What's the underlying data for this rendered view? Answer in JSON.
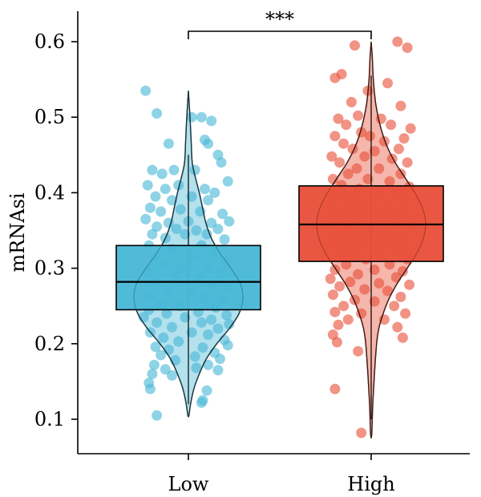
{
  "chart_data": {
    "type": "violin-box-jitter",
    "title": "",
    "xlabel": "",
    "ylabel": "mRNAsi",
    "ylim": [
      0.07,
      0.63
    ],
    "yticks": [
      0.1,
      0.2,
      0.3,
      0.4,
      0.5,
      0.6
    ],
    "categories": [
      "Low",
      "High"
    ],
    "significance": {
      "label": "***",
      "between": [
        "Low",
        "High"
      ]
    },
    "series": [
      {
        "category": "Low",
        "color": "#49B8D6",
        "box": {
          "q1": 0.245,
          "median": 0.282,
          "q3": 0.33
        },
        "whisker": [
          0.12,
          0.45
        ],
        "violin_range": [
          0.105,
          0.535
        ],
        "violin_density": [
          [
            0.105,
            0.01
          ],
          [
            0.12,
            0.04
          ],
          [
            0.14,
            0.1
          ],
          [
            0.16,
            0.2
          ],
          [
            0.18,
            0.33
          ],
          [
            0.2,
            0.52
          ],
          [
            0.22,
            0.75
          ],
          [
            0.24,
            0.93
          ],
          [
            0.26,
            1.0
          ],
          [
            0.28,
            0.95
          ],
          [
            0.3,
            0.78
          ],
          [
            0.32,
            0.58
          ],
          [
            0.34,
            0.42
          ],
          [
            0.36,
            0.32
          ],
          [
            0.38,
            0.26
          ],
          [
            0.4,
            0.2
          ],
          [
            0.42,
            0.13
          ],
          [
            0.44,
            0.07
          ],
          [
            0.47,
            0.05
          ],
          [
            0.5,
            0.03
          ],
          [
            0.535,
            0.0
          ]
        ],
        "points": [
          [
            -0.65,
            0.535
          ],
          [
            -0.48,
            0.505
          ],
          [
            0.05,
            0.5
          ],
          [
            0.2,
            0.5
          ],
          [
            0.35,
            0.495
          ],
          [
            -0.3,
            0.465
          ],
          [
            0.25,
            0.47
          ],
          [
            0.3,
            0.465
          ],
          [
            0.45,
            0.45
          ],
          [
            0.5,
            0.44
          ],
          [
            -0.55,
            0.43
          ],
          [
            -0.4,
            0.425
          ],
          [
            -0.22,
            0.43
          ],
          [
            0.1,
            0.43
          ],
          [
            0.6,
            0.415
          ],
          [
            -0.62,
            0.41
          ],
          [
            -0.35,
            0.405
          ],
          [
            -0.15,
            0.41
          ],
          [
            0.25,
            0.405
          ],
          [
            0.4,
            0.4
          ],
          [
            -0.5,
            0.395
          ],
          [
            -0.25,
            0.39
          ],
          [
            0.05,
            0.395
          ],
          [
            0.3,
            0.39
          ],
          [
            -0.58,
            0.38
          ],
          [
            -0.42,
            0.375
          ],
          [
            -0.12,
            0.378
          ],
          [
            0.18,
            0.375
          ],
          [
            0.52,
            0.372
          ],
          [
            -0.65,
            0.365
          ],
          [
            -0.3,
            0.36
          ],
          [
            0.0,
            0.362
          ],
          [
            0.35,
            0.36
          ],
          [
            0.62,
            0.362
          ],
          [
            -0.48,
            0.355
          ],
          [
            -0.18,
            0.352
          ],
          [
            0.12,
            0.35
          ],
          [
            0.45,
            0.352
          ],
          [
            -0.55,
            0.345
          ],
          [
            -0.05,
            0.345
          ],
          [
            0.28,
            0.345
          ],
          [
            -0.35,
            0.34
          ],
          [
            0.55,
            0.338
          ],
          [
            -0.6,
            0.33
          ],
          [
            0.2,
            0.33
          ],
          [
            -0.25,
            0.325
          ],
          [
            0.4,
            0.32
          ],
          [
            -0.5,
            0.315
          ],
          [
            0.08,
            0.315
          ],
          [
            0.58,
            0.31
          ],
          [
            -0.4,
            0.305
          ],
          [
            -0.1,
            0.3
          ],
          [
            0.3,
            0.3
          ],
          [
            -0.62,
            0.295
          ],
          [
            0.48,
            0.292
          ],
          [
            -0.2,
            0.29
          ],
          [
            0.15,
            0.288
          ],
          [
            -0.52,
            0.28
          ],
          [
            0.38,
            0.278
          ],
          [
            0.6,
            0.275
          ],
          [
            -0.3,
            0.27
          ],
          [
            0.05,
            0.268
          ],
          [
            -0.58,
            0.262
          ],
          [
            0.25,
            0.26
          ],
          [
            0.52,
            0.258
          ],
          [
            -0.42,
            0.252
          ],
          [
            -0.12,
            0.25
          ],
          [
            0.42,
            0.248
          ],
          [
            -0.6,
            0.245
          ],
          [
            0.15,
            0.242
          ],
          [
            -0.33,
            0.24
          ],
          [
            0.58,
            0.238
          ],
          [
            -0.68,
            0.235
          ],
          [
            -0.05,
            0.235
          ],
          [
            0.35,
            0.232
          ],
          [
            -0.48,
            0.228
          ],
          [
            0.2,
            0.228
          ],
          [
            0.62,
            0.226
          ],
          [
            -0.25,
            0.222
          ],
          [
            0.45,
            0.22
          ],
          [
            -0.58,
            0.215
          ],
          [
            0.05,
            0.215
          ],
          [
            0.3,
            0.212
          ],
          [
            -0.38,
            0.208
          ],
          [
            0.55,
            0.205
          ],
          [
            -0.15,
            0.203
          ],
          [
            0.6,
            0.198
          ],
          [
            -0.5,
            0.196
          ],
          [
            0.22,
            0.195
          ],
          [
            -0.3,
            0.192
          ],
          [
            0.4,
            0.188
          ],
          [
            -0.42,
            0.185
          ],
          [
            0.1,
            0.183
          ],
          [
            0.48,
            0.18
          ],
          [
            -0.2,
            0.178
          ],
          [
            -0.52,
            0.172
          ],
          [
            0.3,
            0.172
          ],
          [
            -0.35,
            0.166
          ],
          [
            0.12,
            0.168
          ],
          [
            0.45,
            0.165
          ],
          [
            -0.55,
            0.16
          ],
          [
            -0.25,
            0.158
          ],
          [
            -0.6,
            0.148
          ],
          [
            -0.58,
            0.14
          ],
          [
            0.28,
            0.138
          ],
          [
            0.22,
            0.125
          ],
          [
            0.2,
            0.122
          ],
          [
            -0.48,
            0.105
          ]
        ]
      },
      {
        "category": "High",
        "color": "#E8503A",
        "box": {
          "q1": 0.309,
          "median": 0.358,
          "q3": 0.409
        },
        "whisker": [
          0.1,
          0.555
        ],
        "violin_range": [
          0.08,
          0.6
        ],
        "violin_density": [
          [
            0.08,
            0.01
          ],
          [
            0.12,
            0.03
          ],
          [
            0.16,
            0.06
          ],
          [
            0.2,
            0.1
          ],
          [
            0.22,
            0.14
          ],
          [
            0.24,
            0.22
          ],
          [
            0.26,
            0.33
          ],
          [
            0.28,
            0.48
          ],
          [
            0.3,
            0.66
          ],
          [
            0.32,
            0.84
          ],
          [
            0.34,
            0.96
          ],
          [
            0.36,
            1.0
          ],
          [
            0.38,
            0.94
          ],
          [
            0.4,
            0.8
          ],
          [
            0.42,
            0.62
          ],
          [
            0.44,
            0.44
          ],
          [
            0.46,
            0.3
          ],
          [
            0.48,
            0.2
          ],
          [
            0.5,
            0.13
          ],
          [
            0.52,
            0.08
          ],
          [
            0.55,
            0.04
          ],
          [
            0.58,
            0.02
          ],
          [
            0.6,
            0.0
          ]
        ],
        "points": [
          [
            -0.25,
            0.595
          ],
          [
            0.4,
            0.6
          ],
          [
            0.55,
            0.592
          ],
          [
            -0.55,
            0.552
          ],
          [
            -0.45,
            0.557
          ],
          [
            0.25,
            0.545
          ],
          [
            -0.05,
            0.535
          ],
          [
            -0.3,
            0.52
          ],
          [
            0.45,
            0.515
          ],
          [
            -0.5,
            0.498
          ],
          [
            -0.2,
            0.502
          ],
          [
            0.15,
            0.498
          ],
          [
            -0.38,
            0.49
          ],
          [
            0.3,
            0.49
          ],
          [
            -0.15,
            0.48
          ],
          [
            0.6,
            0.485
          ],
          [
            -0.55,
            0.475
          ],
          [
            -0.02,
            0.475
          ],
          [
            0.5,
            0.472
          ],
          [
            -0.42,
            0.465
          ],
          [
            0.2,
            0.468
          ],
          [
            -0.28,
            0.458
          ],
          [
            0.42,
            0.458
          ],
          [
            0.05,
            0.455
          ],
          [
            -0.6,
            0.448
          ],
          [
            -0.1,
            0.448
          ],
          [
            0.32,
            0.445
          ],
          [
            -0.48,
            0.44
          ],
          [
            0.55,
            0.44
          ],
          [
            -0.22,
            0.432
          ],
          [
            0.12,
            0.432
          ],
          [
            -0.35,
            0.425
          ],
          [
            0.45,
            0.425
          ],
          [
            -0.58,
            0.418
          ],
          [
            -0.05,
            0.418
          ],
          [
            0.28,
            0.415
          ],
          [
            -0.45,
            0.41
          ],
          [
            0.58,
            0.408
          ],
          [
            -0.18,
            0.405
          ],
          [
            0.15,
            0.402
          ],
          [
            -0.52,
            0.398
          ],
          [
            0.38,
            0.398
          ],
          [
            -0.3,
            0.392
          ],
          [
            0.02,
            0.39
          ],
          [
            0.52,
            0.388
          ],
          [
            -0.6,
            0.382
          ],
          [
            -0.12,
            0.38
          ],
          [
            0.25,
            0.378
          ],
          [
            -0.4,
            0.372
          ],
          [
            0.45,
            0.372
          ],
          [
            -0.22,
            0.366
          ],
          [
            0.08,
            0.365
          ],
          [
            -0.55,
            0.36
          ],
          [
            0.35,
            0.36
          ],
          [
            0.6,
            0.355
          ],
          [
            -0.35,
            0.352
          ],
          [
            -0.02,
            0.35
          ],
          [
            0.2,
            0.348
          ],
          [
            -0.48,
            0.344
          ],
          [
            0.5,
            0.342
          ],
          [
            -0.15,
            0.338
          ],
          [
            0.3,
            0.336
          ],
          [
            -0.58,
            0.332
          ],
          [
            0.05,
            0.33
          ],
          [
            -0.28,
            0.326
          ],
          [
            0.42,
            0.325
          ],
          [
            -0.45,
            0.318
          ],
          [
            0.15,
            0.318
          ],
          [
            -0.08,
            0.312
          ],
          [
            0.55,
            0.312
          ],
          [
            -0.38,
            0.305
          ],
          [
            0.28,
            0.305
          ],
          [
            -0.55,
            0.298
          ],
          [
            0.05,
            0.298
          ],
          [
            0.48,
            0.296
          ],
          [
            -0.2,
            0.292
          ],
          [
            -0.62,
            0.286
          ],
          [
            0.38,
            0.288
          ],
          [
            -0.32,
            0.282
          ],
          [
            0.12,
            0.28
          ],
          [
            -0.48,
            0.276
          ],
          [
            0.58,
            0.278
          ],
          [
            -0.1,
            0.272
          ],
          [
            0.25,
            0.27
          ],
          [
            -0.58,
            0.265
          ],
          [
            0.45,
            0.262
          ],
          [
            -0.25,
            0.258
          ],
          [
            0.05,
            0.256
          ],
          [
            -0.42,
            0.25
          ],
          [
            0.35,
            0.25
          ],
          [
            -0.55,
            0.242
          ],
          [
            -0.15,
            0.24
          ],
          [
            0.52,
            0.24
          ],
          [
            -0.35,
            0.232
          ],
          [
            0.2,
            0.232
          ],
          [
            -0.5,
            0.225
          ],
          [
            0.4,
            0.222
          ],
          [
            -0.58,
            0.212
          ],
          [
            0.48,
            0.208
          ],
          [
            -0.52,
            0.202
          ],
          [
            -0.2,
            0.19
          ],
          [
            -0.55,
            0.14
          ],
          [
            -0.15,
            0.082
          ]
        ]
      }
    ]
  }
}
